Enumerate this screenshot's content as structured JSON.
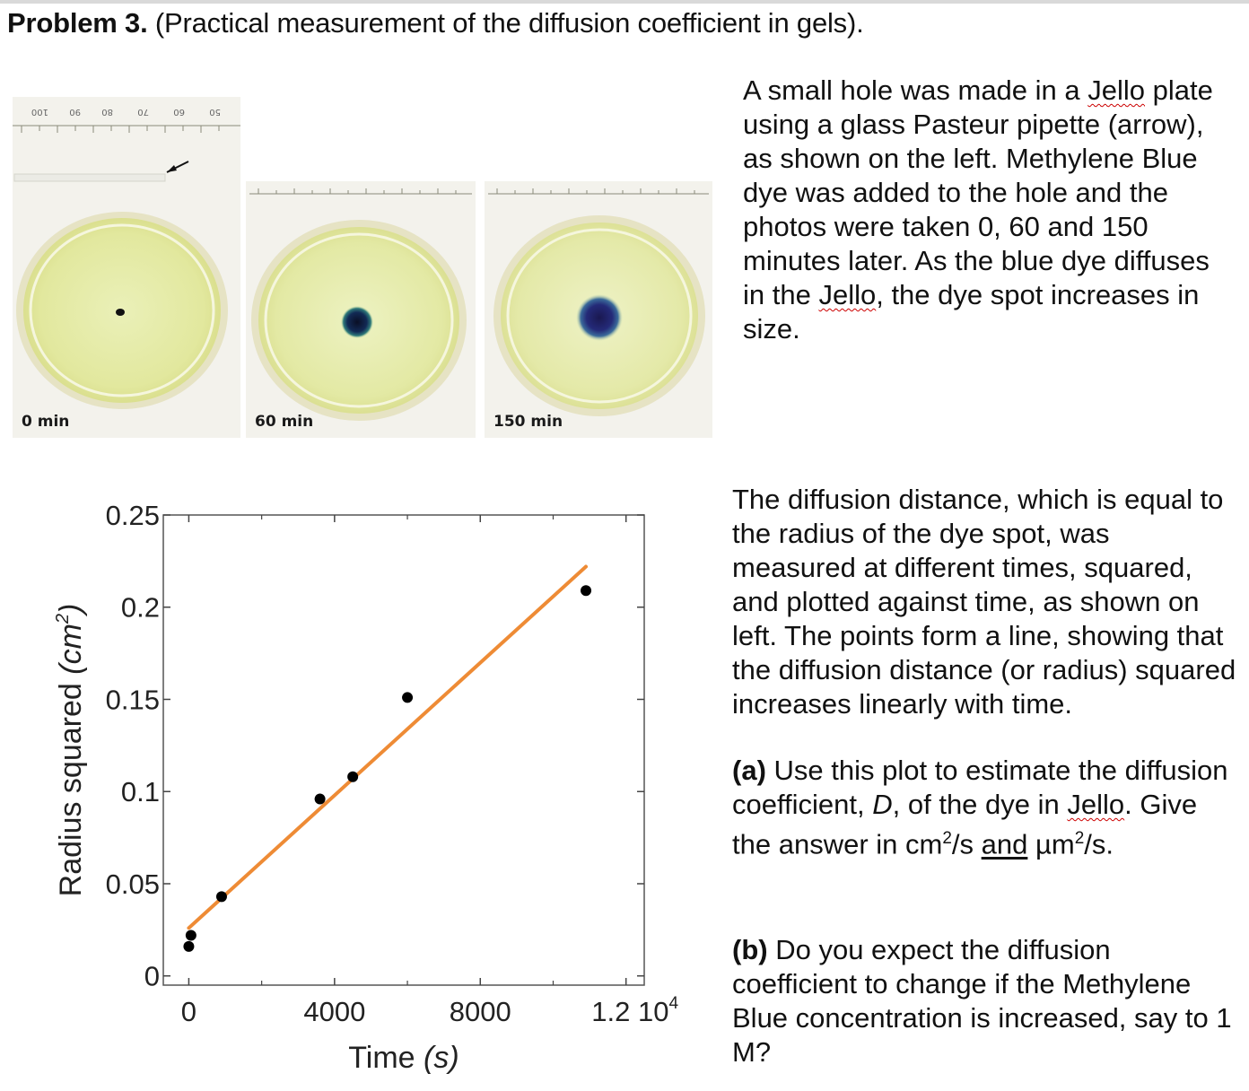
{
  "title": {
    "problem_label": "Problem 3.",
    "problem_text": " (Practical measurement of the diffusion coefficient in gels)."
  },
  "photos": [
    {
      "caption": "0 min"
    },
    {
      "caption": "60 min"
    },
    {
      "caption": "150 min"
    }
  ],
  "ruler_numbers": [
    "100",
    "90",
    "80",
    "70",
    "60",
    "50"
  ],
  "intro": {
    "p1": "A small hole was made in a ",
    "jello1": "Jello",
    "p2": " plate using a glass Pasteur pipette (arrow), as shown on the left. Methylene Blue dye was added to the hole and the photos were taken 0, 60 and 150 minutes later. As the blue dye diffuses in the ",
    "jello2": "Jello",
    "p3": ", the dye spot increases in size."
  },
  "explanation": "The diffusion distance, which is equal to the radius of the dye spot, was measured at different times, squared, and plotted against time, as shown on left. The points form a line, showing that the diffusion distance (or radius) squared increases linearly with time.",
  "question_a": {
    "label": "(a)",
    "t1": " Use this plot to estimate the diffusion coefficient, ",
    "D": "D",
    "t2": ", of the dye in ",
    "jello": "Jello",
    "t3": ". Give the answer in cm",
    "sup1": "2",
    "t4": "/s ",
    "and": "and",
    "t5": " µm",
    "sup2": "2",
    "t6": "/s."
  },
  "question_b": {
    "label": "(b)",
    "text": " Do you expect the diffusion coefficient to change if the Methylene Blue concentration is increased, say to 1 M?"
  },
  "chart_data": {
    "type": "scatter",
    "title": "",
    "xlabel_main": "Time ",
    "xlabel_unit": "(s)",
    "ylabel_main": "Radius squared ",
    "ylabel_unit": "(cm",
    "ylabel_sup": "2",
    "ylabel_close": ")",
    "xlim": [
      -700,
      12500
    ],
    "ylim": [
      -0.005,
      0.25
    ],
    "xticks": [
      {
        "value": 0,
        "label": "0"
      },
      {
        "value": 4000,
        "label": "4000"
      },
      {
        "value": 8000,
        "label": "8000"
      },
      {
        "value": 12000,
        "label": "1.2 10",
        "sup": "4"
      }
    ],
    "yticks": [
      {
        "value": 0,
        "label": "0"
      },
      {
        "value": 0.05,
        "label": "0.05"
      },
      {
        "value": 0.1,
        "label": "0.1"
      },
      {
        "value": 0.15,
        "label": "0.15"
      },
      {
        "value": 0.2,
        "label": "0.2"
      },
      {
        "value": 0.25,
        "label": "0.25"
      }
    ],
    "points": [
      {
        "x": 0,
        "y": 0.016
      },
      {
        "x": 60,
        "y": 0.022
      },
      {
        "x": 900,
        "y": 0.043
      },
      {
        "x": 3600,
        "y": 0.096
      },
      {
        "x": 4500,
        "y": 0.108
      },
      {
        "x": 6000,
        "y": 0.151
      },
      {
        "x": 10900,
        "y": 0.209
      }
    ],
    "fit_line": {
      "x": [
        0,
        10900
      ],
      "y": [
        0.026,
        0.222
      ]
    },
    "colors": {
      "points": "#000000",
      "fit": "#ee8b35",
      "frame": "#555555"
    }
  }
}
